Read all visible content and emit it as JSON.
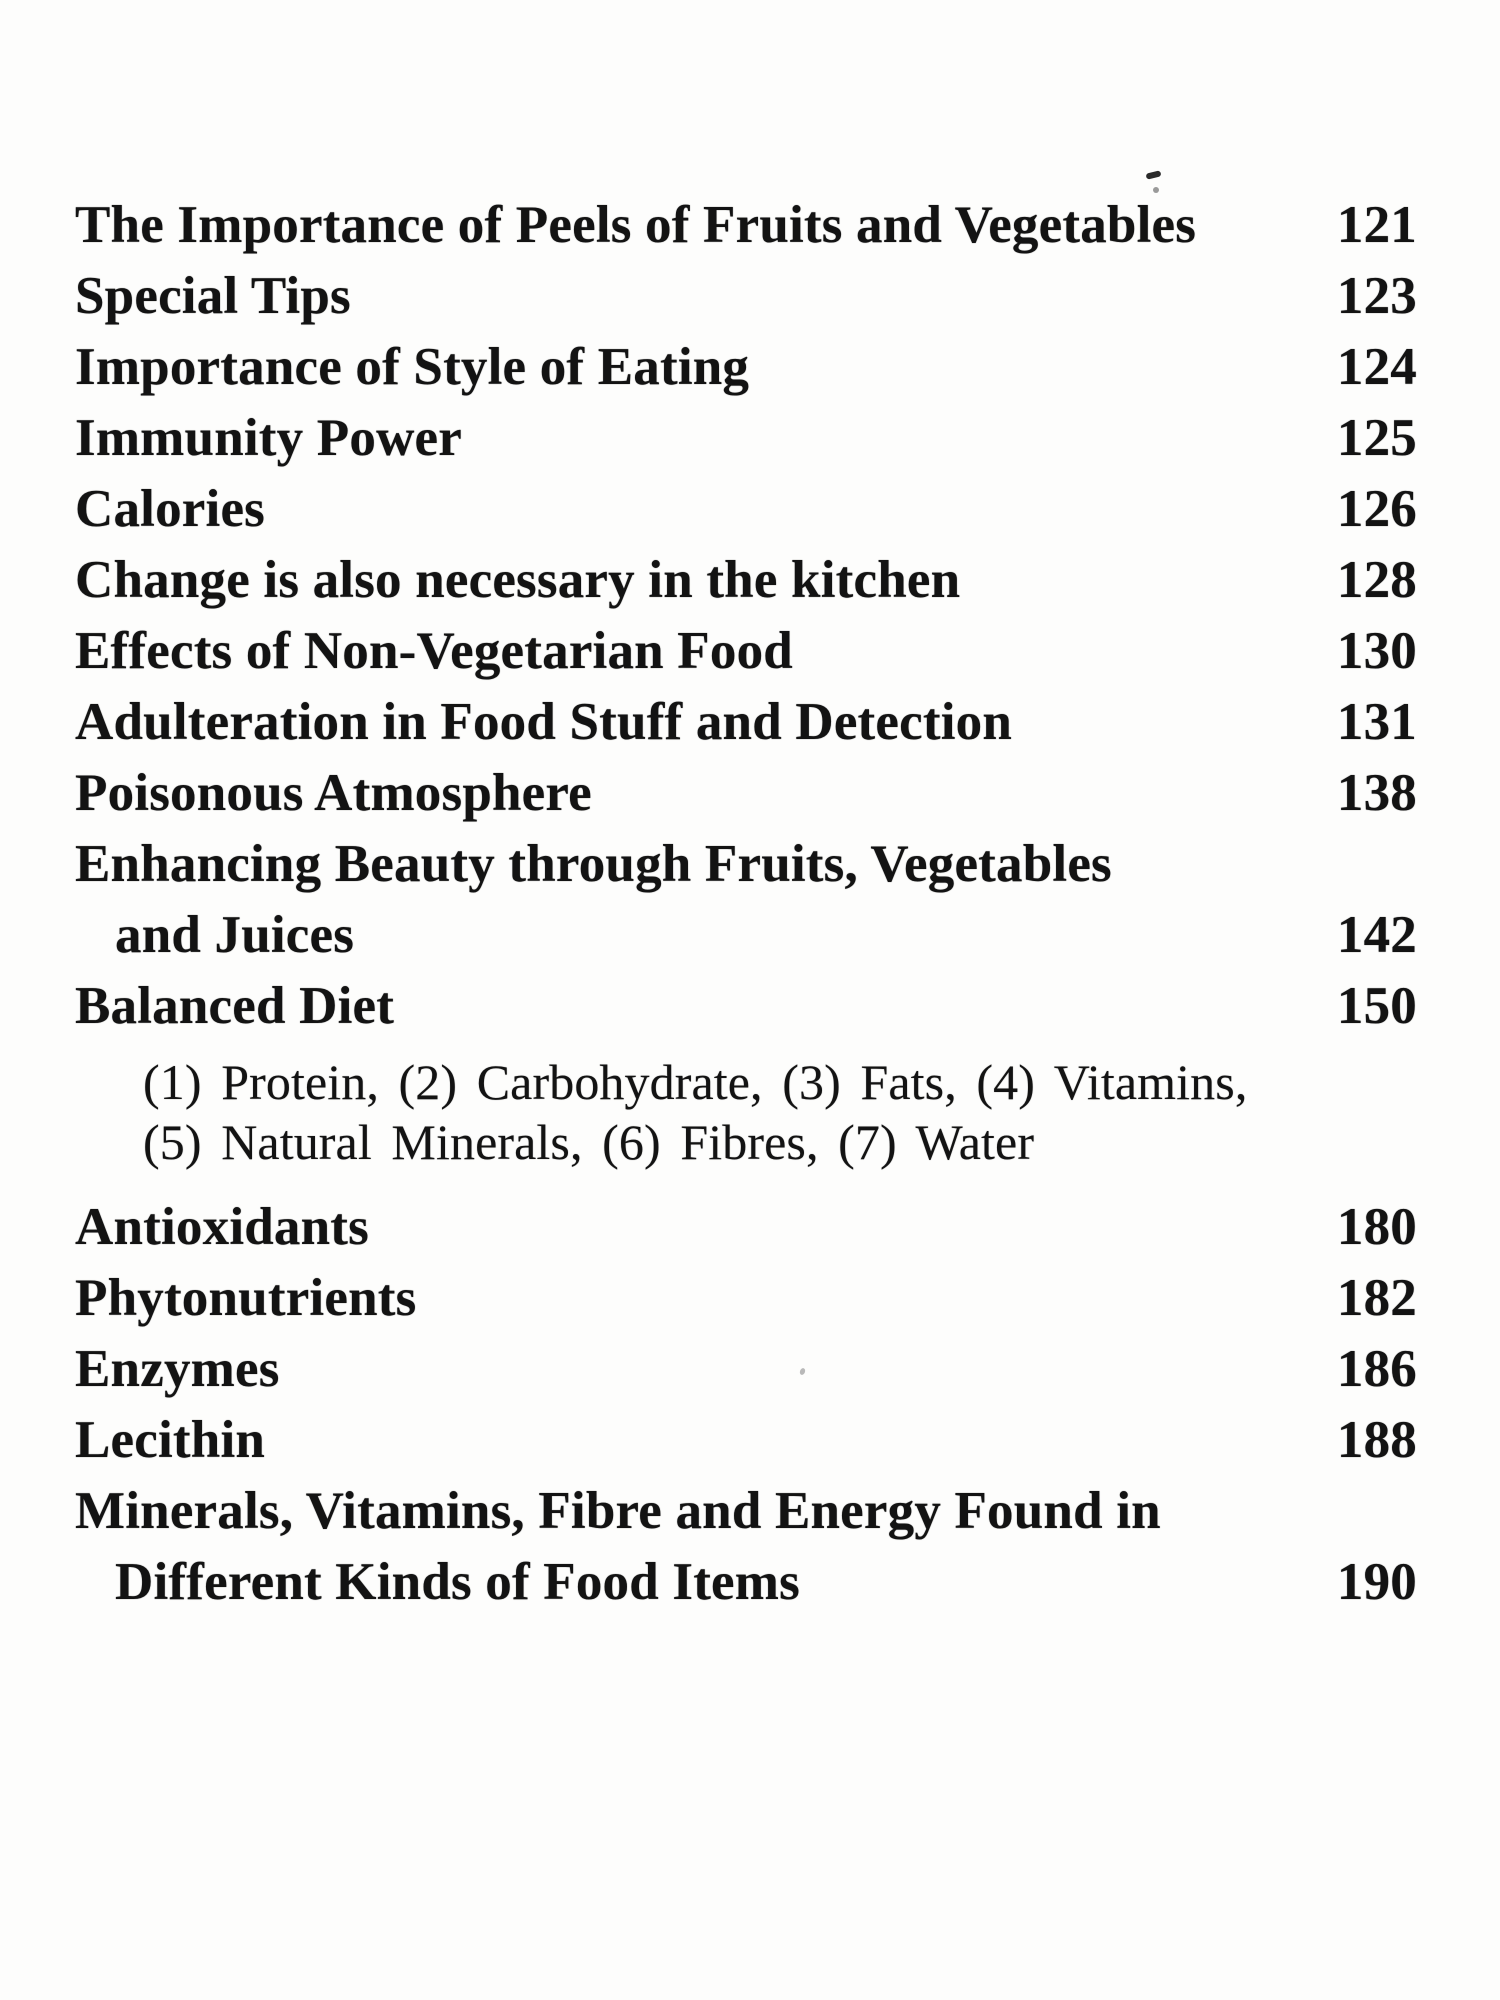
{
  "page": {
    "background": "#fdfdfc",
    "ink": "#131313"
  },
  "toc": {
    "entries": [
      {
        "label": "The Importance of Peels of Fruits and Vegetables",
        "page": "121",
        "indent": 0,
        "style": "main"
      },
      {
        "label": "Special Tips",
        "page": "123",
        "indent": 0,
        "style": "main"
      },
      {
        "label": "Importance of Style of Eating",
        "page": "124",
        "indent": 0,
        "style": "main"
      },
      {
        "label": "Immunity Power",
        "page": "125",
        "indent": 0,
        "style": "main"
      },
      {
        "label": "Calories",
        "page": "126",
        "indent": 0,
        "style": "main"
      },
      {
        "label": "Change is also necessary in the kitchen",
        "page": "128",
        "indent": 0,
        "style": "main"
      },
      {
        "label": "Effects of Non-Vegetarian Food",
        "page": "130",
        "indent": 0,
        "style": "main"
      },
      {
        "label": "Adulteration in Food Stuff and Detection",
        "page": "131",
        "indent": 0,
        "style": "main"
      },
      {
        "label": "Poisonous Atmosphere",
        "page": "138",
        "indent": 0,
        "style": "main"
      },
      {
        "label": "Enhancing Beauty through Fruits, Vegetables",
        "page": "",
        "indent": 0,
        "style": "main"
      },
      {
        "label": "and Juices",
        "page": "142",
        "indent": 1,
        "style": "main"
      },
      {
        "label": "Balanced Diet",
        "page": "150",
        "indent": 0,
        "style": "main"
      },
      {
        "label": "(1) Protein, (2) Carbohydrate, (3) Fats, (4) Vitamins,",
        "page": "",
        "indent": 2,
        "style": "sub"
      },
      {
        "label": "(5) Natural Minerals, (6) Fibres, (7) Water",
        "page": "",
        "indent": 2,
        "style": "sub"
      },
      {
        "label": "Antioxidants",
        "page": "180",
        "indent": 0,
        "style": "main"
      },
      {
        "label": "Phytonutrients",
        "page": "182",
        "indent": 0,
        "style": "main"
      },
      {
        "label": "Enzymes",
        "page": "186",
        "indent": 0,
        "style": "main"
      },
      {
        "label": "Lecithin",
        "page": "188",
        "indent": 0,
        "style": "main"
      },
      {
        "label": "Minerals, Vitamins, Fibre and Energy Found in",
        "page": "",
        "indent": 0,
        "style": "main"
      },
      {
        "label": "Different Kinds of Food Items",
        "page": "190",
        "indent": 1,
        "style": "main"
      }
    ]
  }
}
